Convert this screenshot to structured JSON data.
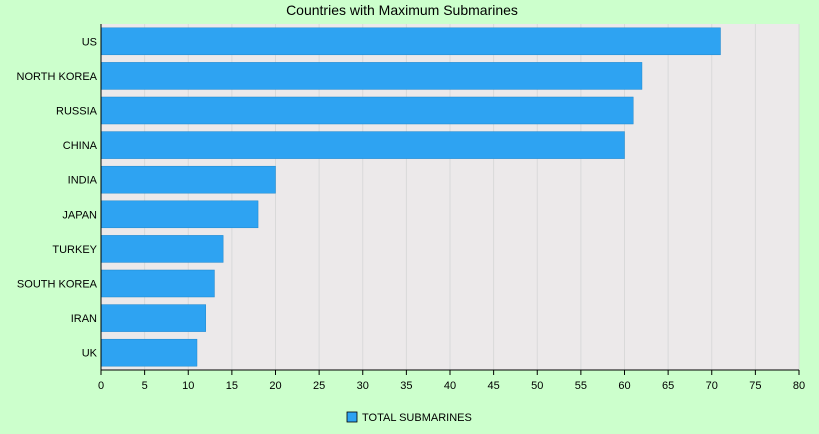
{
  "colors": {
    "page_background": "#ccffcc",
    "plot_background": "#ece9ea",
    "bar": "#2ea3f2",
    "bar_stroke": "#1d86cc",
    "grid": "#d9d9d9",
    "axis": "#000000"
  },
  "chart_data": {
    "type": "bar",
    "orientation": "horizontal",
    "title": "Countries with Maximum Submarines",
    "xlabel": "",
    "ylabel": "",
    "categories": [
      "US",
      "NORTH KOREA",
      "RUSSIA",
      "CHINA",
      "INDIA",
      "JAPAN",
      "TURKEY",
      "SOUTH KOREA",
      "IRAN",
      "UK"
    ],
    "series": [
      {
        "name": "TOTAL SUBMARINES",
        "values": [
          71,
          62,
          61,
          60,
          20,
          18,
          14,
          13,
          12,
          11
        ]
      }
    ],
    "xlim": [
      0,
      80
    ],
    "xticks": [
      0,
      5,
      10,
      15,
      20,
      25,
      30,
      35,
      40,
      45,
      50,
      55,
      60,
      65,
      70,
      75,
      80
    ],
    "grid": true,
    "legend": "bottom-center"
  }
}
